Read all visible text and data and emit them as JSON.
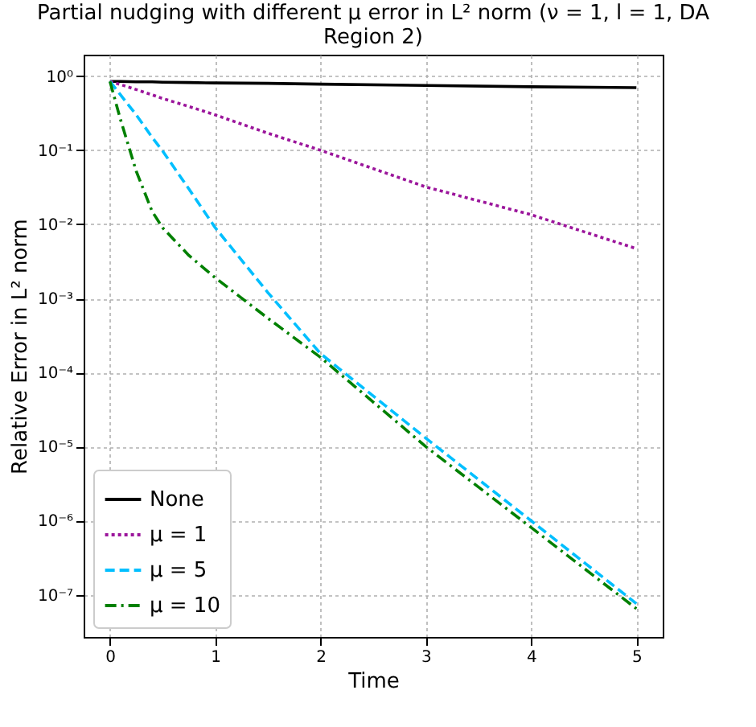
{
  "chart_data": {
    "type": "line",
    "title": "Partial nudging with different μ error in L² norm (ν = 1, l = 1, DA Region 2)",
    "xlabel": "Time",
    "ylabel": "Relative Error in L² norm",
    "x": [
      0,
      0.1,
      0.25,
      0.4,
      0.5,
      0.75,
      1,
      1.5,
      2,
      3,
      4,
      5
    ],
    "series": [
      {
        "name": "None",
        "color": "#000000",
        "line_style": "solid",
        "values": [
          0.85,
          0.85,
          0.84,
          0.84,
          0.83,
          0.82,
          0.81,
          0.8,
          0.78,
          0.75,
          0.72,
          0.7
        ]
      },
      {
        "name": "μ = 1",
        "color": "#9b159b",
        "line_style": "dotted",
        "values": [
          0.85,
          0.77,
          0.66,
          0.56,
          0.5,
          0.39,
          0.3,
          0.17,
          0.1,
          0.032,
          0.0135,
          0.0047
        ]
      },
      {
        "name": "μ = 5",
        "color": "#00bfff",
        "line_style": "dashed",
        "values": [
          0.85,
          0.56,
          0.3,
          0.15,
          0.098,
          0.03,
          0.009,
          0.0012,
          0.00018,
          1.3e-05,
          1e-06,
          7.6e-08
        ]
      },
      {
        "name": "μ = 10",
        "color": "#008000",
        "line_style": "dashdot",
        "values": [
          0.85,
          0.26,
          0.052,
          0.015,
          0.009,
          0.0038,
          0.0019,
          0.00054,
          0.00016,
          1e-05,
          8.1e-07,
          6.5e-08
        ]
      }
    ],
    "log": "y",
    "xlim": [
      -0.25,
      5.25
    ],
    "xticks": [
      0,
      1,
      2,
      3,
      4,
      5
    ],
    "ylim": [
      2.7e-08,
      1.95
    ],
    "yticks": [
      {
        "value": 1,
        "label": "10⁰"
      },
      {
        "value": 0.1,
        "label": "10⁻¹"
      },
      {
        "value": 0.01,
        "label": "10⁻²"
      },
      {
        "value": 0.001,
        "label": "10⁻³"
      },
      {
        "value": 0.0001,
        "label": "10⁻⁴"
      },
      {
        "value": 1e-05,
        "label": "10⁻⁵"
      },
      {
        "value": 1e-06,
        "label": "10⁻⁶"
      },
      {
        "value": 1e-07,
        "label": "10⁻⁷"
      }
    ],
    "grid": true,
    "legend": "bottom left"
  }
}
